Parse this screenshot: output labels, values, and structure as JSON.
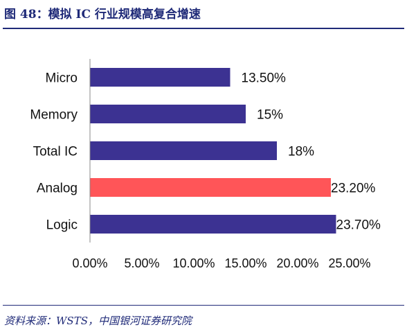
{
  "figure": {
    "title": "图 48：模拟 IC 行业规模高复合增速",
    "source": "资料来源：WSTS，中国银河证券研究院"
  },
  "chart_data": {
    "type": "bar",
    "orientation": "horizontal",
    "categories": [
      "Micro",
      "Memory",
      "Total IC",
      "Analog",
      "Logic"
    ],
    "values": [
      13.5,
      15,
      18,
      23.2,
      23.7
    ],
    "value_labels": [
      "13.50%",
      "15%",
      "18%",
      "23.20%",
      "23.70%"
    ],
    "xlim": [
      0,
      25
    ],
    "xticks": [
      "0.00%",
      "5.00%",
      "10.00%",
      "15.00%",
      "20.00%",
      "25.00%"
    ],
    "grid": false,
    "colors": {
      "default_bar": "#3c3292",
      "highlight_bar": "#ff5558",
      "title": "#1f2a78"
    },
    "highlight_category": "Analog"
  }
}
